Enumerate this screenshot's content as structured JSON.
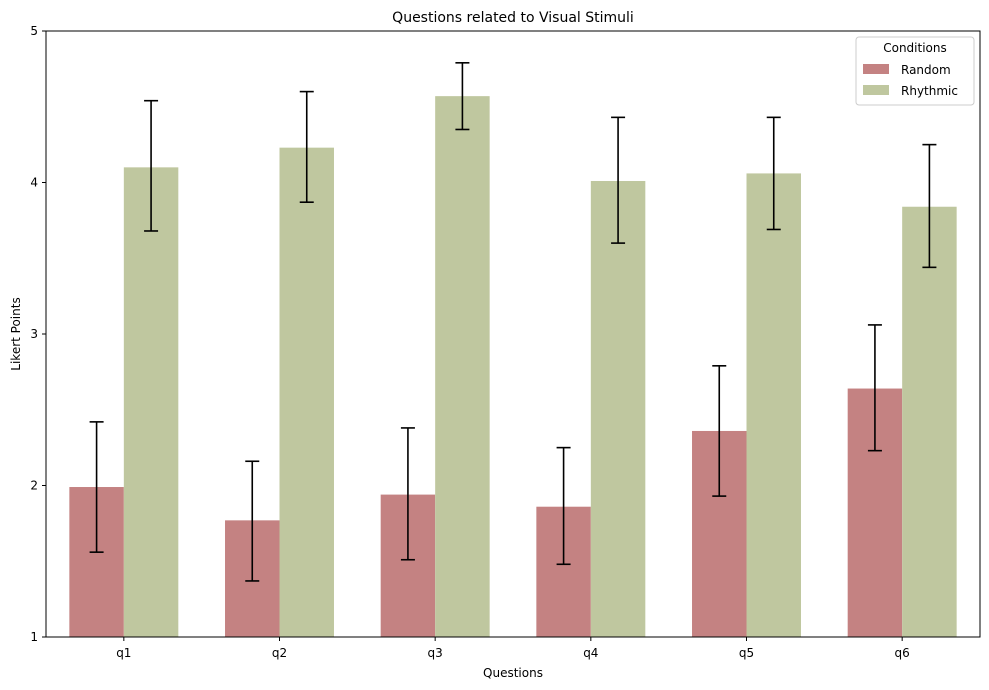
{
  "chart_data": {
    "type": "bar",
    "title": "Questions related to Visual Stimuli",
    "xlabel": "Questions",
    "ylabel": "Likert Points",
    "categories": [
      "q1",
      "q2",
      "q3",
      "q4",
      "q5",
      "q6"
    ],
    "ylim": [
      1,
      5
    ],
    "yticks": [
      "1",
      "2",
      "3",
      "4",
      "5"
    ],
    "grid": false,
    "legend": {
      "title": "Conditions",
      "placement": "top-right"
    },
    "series": [
      {
        "name": "Random",
        "color": "#c48282",
        "values": [
          1.99,
          1.77,
          1.94,
          1.86,
          2.36,
          2.64
        ],
        "err_low": [
          1.56,
          1.37,
          1.51,
          1.48,
          1.93,
          2.23
        ],
        "err_high": [
          2.42,
          2.16,
          2.38,
          2.25,
          2.79,
          3.06
        ]
      },
      {
        "name": "Rhythmic",
        "color": "#bfc79f",
        "values": [
          4.1,
          4.23,
          4.57,
          4.01,
          4.06,
          3.84
        ],
        "err_low": [
          3.68,
          3.87,
          4.35,
          3.6,
          3.69,
          3.44
        ],
        "err_high": [
          4.54,
          4.6,
          4.79,
          4.43,
          4.43,
          4.25
        ]
      }
    ]
  }
}
